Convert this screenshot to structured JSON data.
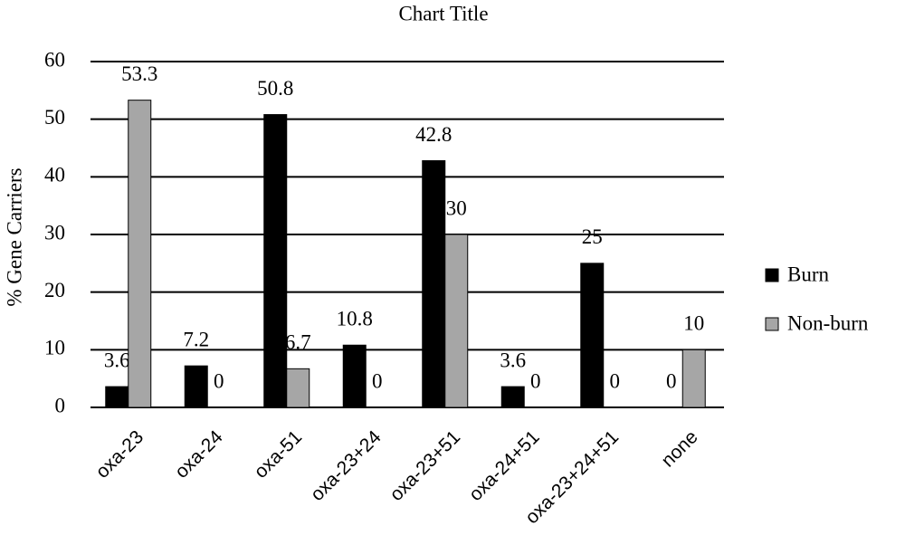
{
  "chart_data": {
    "type": "bar",
    "title": "Chart Title",
    "y_label": "% Gene Carriers",
    "categories": [
      "oxa-23",
      "oxa-24",
      "oxa-51",
      "oxa-23+24",
      "oxa-23+51",
      "oxa-24+51",
      "oxa-23+24+51",
      "none"
    ],
    "series": [
      {
        "name": "Burn",
        "color": "#000000",
        "values": [
          3.6,
          7.2,
          50.8,
          10.8,
          42.8,
          3.6,
          25,
          0
        ]
      },
      {
        "name": "Non-burn",
        "color": "#a6a6a6",
        "values": [
          53.3,
          0,
          6.7,
          0,
          30,
          0,
          0,
          10
        ]
      }
    ],
    "ylim": [
      0,
      60
    ],
    "yticks": [
      0,
      10,
      20,
      30,
      40,
      50,
      60
    ],
    "grid": true,
    "legend": "right"
  }
}
